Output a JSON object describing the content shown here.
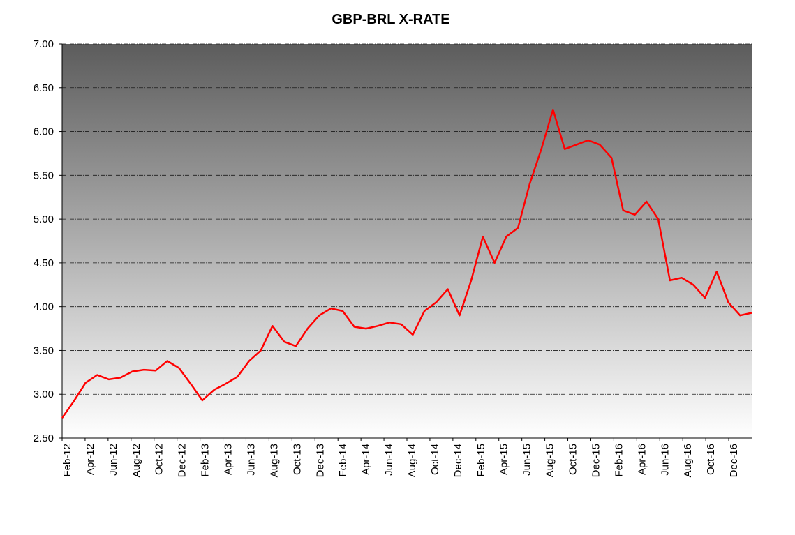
{
  "chart_data": {
    "type": "line",
    "title": "GBP-BRL X-RATE",
    "xlabel": "",
    "ylabel": "",
    "ylim": [
      2.5,
      7.0
    ],
    "yticks": [
      "2.50",
      "3.00",
      "3.50",
      "4.00",
      "4.50",
      "5.00",
      "5.50",
      "6.00",
      "6.50",
      "7.00"
    ],
    "xticks": [
      "Feb-12",
      "Apr-12",
      "Jun-12",
      "Aug-12",
      "Oct-12",
      "Dec-12",
      "Feb-13",
      "Apr-13",
      "Jun-13",
      "Aug-13",
      "Oct-13",
      "Dec-13",
      "Feb-14",
      "Apr-14",
      "Jun-14",
      "Aug-14",
      "Oct-14",
      "Dec-14",
      "Feb-15",
      "Apr-15",
      "Jun-15",
      "Aug-15",
      "Oct-15",
      "Dec-15",
      "Feb-16",
      "Apr-16",
      "Jun-16",
      "Aug-16",
      "Oct-16",
      "Dec-16"
    ],
    "grid": "horizontal dash-dot",
    "background": "vertical gradient dark grey to white",
    "series": [
      {
        "color": "#ff0000",
        "x": [
          "2012-02",
          "2012-03",
          "2012-04",
          "2012-05",
          "2012-06",
          "2012-07",
          "2012-08",
          "2012-09",
          "2012-10",
          "2012-11",
          "2012-12",
          "2013-01",
          "2013-02",
          "2013-03",
          "2013-04",
          "2013-05",
          "2013-06",
          "2013-07",
          "2013-08",
          "2013-09",
          "2013-10",
          "2013-11",
          "2013-12",
          "2014-01",
          "2014-02",
          "2014-03",
          "2014-04",
          "2014-05",
          "2014-06",
          "2014-07",
          "2014-08",
          "2014-09",
          "2014-10",
          "2014-11",
          "2014-12",
          "2015-01",
          "2015-02",
          "2015-03",
          "2015-04",
          "2015-05",
          "2015-06",
          "2015-07",
          "2015-08",
          "2015-09",
          "2015-10",
          "2015-11",
          "2015-12",
          "2016-01",
          "2016-02",
          "2016-03",
          "2016-04",
          "2016-05",
          "2016-06",
          "2016-07",
          "2016-08",
          "2016-09",
          "2016-10",
          "2016-11",
          "2016-12",
          "2017-01"
        ],
        "values": [
          2.73,
          2.92,
          3.13,
          3.22,
          3.17,
          3.19,
          3.26,
          3.28,
          3.27,
          3.38,
          3.3,
          3.12,
          2.93,
          3.05,
          3.12,
          3.2,
          3.38,
          3.5,
          3.78,
          3.6,
          3.55,
          3.75,
          3.9,
          3.98,
          3.95,
          3.77,
          3.75,
          3.78,
          3.82,
          3.8,
          3.68,
          3.95,
          4.05,
          4.2,
          3.9,
          4.3,
          4.8,
          4.5,
          4.8,
          4.9,
          5.4,
          5.8,
          6.25,
          5.8,
          5.85,
          5.9,
          5.85,
          5.7,
          5.1,
          5.05,
          5.2,
          5.0,
          4.3,
          4.33,
          4.25,
          4.1,
          4.4,
          4.05,
          3.9,
          3.93
        ]
      }
    ]
  }
}
